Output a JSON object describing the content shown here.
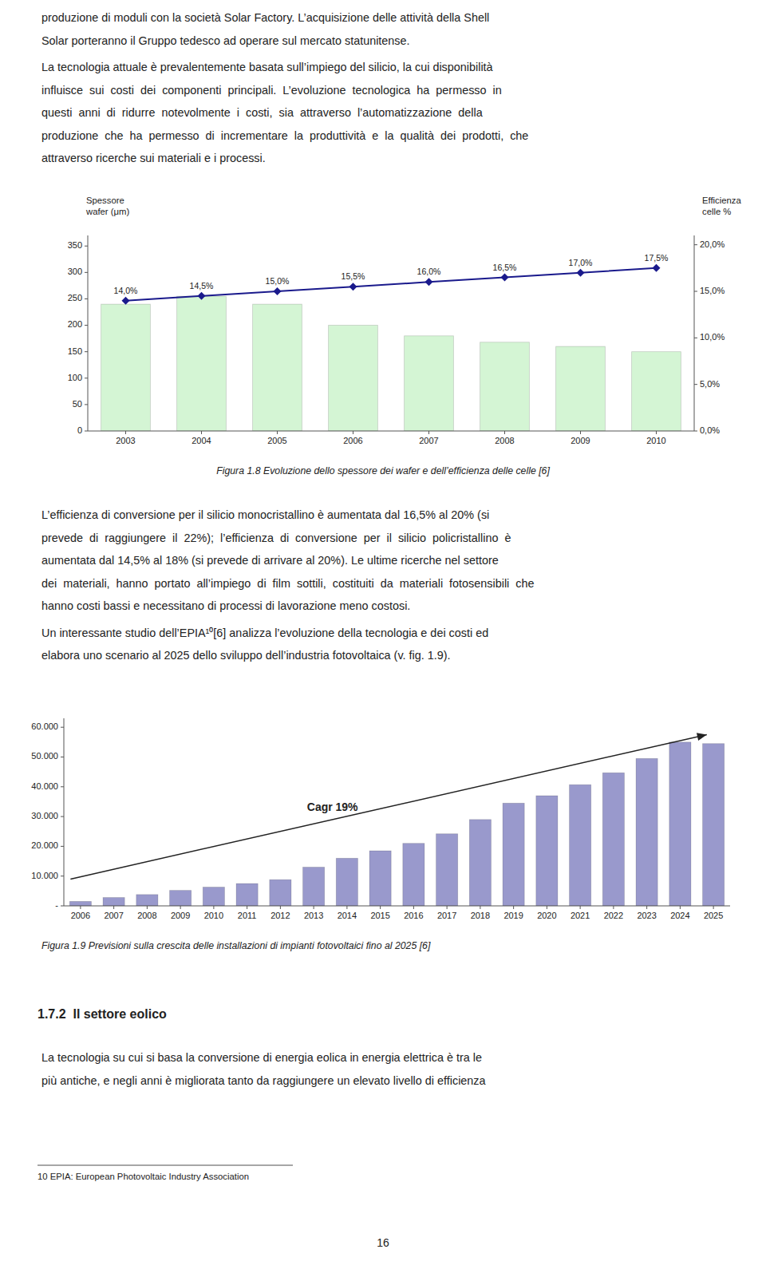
{
  "text_blocks": [
    [
      "produzione di moduli con la società Solar Factory. L’acquisizione delle attività della Shell",
      "Solar porteranno il Gruppo tedesco ad operare sul mercato statunitense."
    ],
    [
      "La tecnologia attuale è prevalentemente basata sull’impiego del silicio, la cui disponibilità",
      "influisce  sui  costi  dei  componenti  principali.  L’evoluzione  tecnologica  ha  permesso  in",
      "questi  anni  di  ridurre  notevolmente  i  costi,  sia  attraverso  l’automatizzazione  della",
      "produzione  che  ha  permesso  di  incrementare  la  produttività  e  la  qualità  dei  prodotti,  che",
      "attraverso ricerche sui materiali e i processi."
    ],
    [
      "L’efficienza di conversione per il silicio monocristallino è aumentata dal 16,5% al 20% (si",
      "prevede  di  raggiungere  il  22%);  l’efficienza  di  conversione  per  il  silicio  policristallino  è",
      "aumentata dal 14,5% al 18% (si prevede di arrivare al 20%). Le ultime ricerche nel settore",
      "dei  materiali,  hanno  portato  all’impiego  di  film  sottili,  costituiti  da  materiali  fotosensibili  che",
      "hanno costi bassi e necessitano di processi di lavorazione meno costosi."
    ],
    [
      "Un interessante studio dell’EPIA¹⁰[6] analizza l’evoluzione della tecnologia e dei costi ed",
      "elabora uno scenario al 2025 dello sviluppo dell’industria fotovoltaica (v. fig. 1.9)."
    ],
    [
      "La tecnologia su cui si basa la conversione di energia eolica in energia elettrica è tra le",
      "più antiche, e negli anni è migliorata tanto da raggiungere un elevato livello di efficienza"
    ]
  ],
  "section_header": "1.7.2  Il settore eolico",
  "footnote": "10 EPIA: European Photovoltaic Industry Association",
  "page_number": "16",
  "chart_data": [
    {
      "type": "bar",
      "caption": "Figura 1.8 Evoluzione dello spessore dei wafer e dell’efficienza delle celle [6]",
      "ylabel": "Spessore\nwafer (μm)",
      "y2label": "Efficienza\ncelle %",
      "categories": [
        "2003",
        "2004",
        "2005",
        "2006",
        "2007",
        "2008",
        "2009",
        "2010"
      ],
      "series": [
        {
          "type": "bar",
          "color": "#d4f5d4",
          "values": [
            240,
            255,
            240,
            200,
            180,
            168,
            160,
            150
          ]
        },
        {
          "type": "line",
          "axis": "y2",
          "color": "#1a1a8c",
          "marker": "diamond",
          "data_labels": true,
          "values": [
            14.0,
            14.5,
            15.0,
            15.5,
            16.0,
            16.5,
            17.0,
            17.5
          ],
          "value_labels": [
            "14,0%",
            "14,5%",
            "15,0%",
            "15,5%",
            "16,0%",
            "16,5%",
            "17,0%",
            "17,5%"
          ]
        }
      ],
      "ylim": [
        0,
        370
      ],
      "yticks": [
        0,
        50,
        100,
        150,
        200,
        250,
        300,
        350
      ],
      "y2lim": [
        0,
        21
      ],
      "y2ticks": [
        {
          "value": 0,
          "label": "0,0%"
        },
        {
          "value": 5,
          "label": "5,0%"
        },
        {
          "value": 10,
          "label": "10,0%"
        },
        {
          "value": 15,
          "label": "15,0%"
        },
        {
          "value": 20,
          "label": "20,0%"
        }
      ],
      "grid": false
    },
    {
      "type": "bar",
      "caption": "Figura 1.9 Previsioni sulla crescita delle installazioni di impianti fotovoltaici fino al 2025 [6]",
      "categories": [
        "2006",
        "2007",
        "2008",
        "2009",
        "2010",
        "2011",
        "2012",
        "2013",
        "2014",
        "2015",
        "2016",
        "2017",
        "2018",
        "2019",
        "2020",
        "2021",
        "2022",
        "2023",
        "2024",
        "2025"
      ],
      "values": [
        1500,
        2800,
        3800,
        5200,
        6300,
        7500,
        8800,
        13000,
        16000,
        18500,
        21000,
        24200,
        29000,
        34500,
        37000,
        40700,
        44700,
        49500,
        55000,
        54500
      ],
      "color": "#9999cc",
      "ylim": [
        0,
        63000
      ],
      "yticks": [
        {
          "value": 0,
          "label": "-"
        },
        {
          "value": 10000,
          "label": "10.000"
        },
        {
          "value": 20000,
          "label": "20.000"
        },
        {
          "value": 30000,
          "label": "30.000"
        },
        {
          "value": 40000,
          "label": "40.000"
        },
        {
          "value": 50000,
          "label": "50.000"
        },
        {
          "value": 60000,
          "label": "60.000"
        }
      ],
      "annotations": [
        "Cagr 19%"
      ],
      "grid": false
    }
  ]
}
